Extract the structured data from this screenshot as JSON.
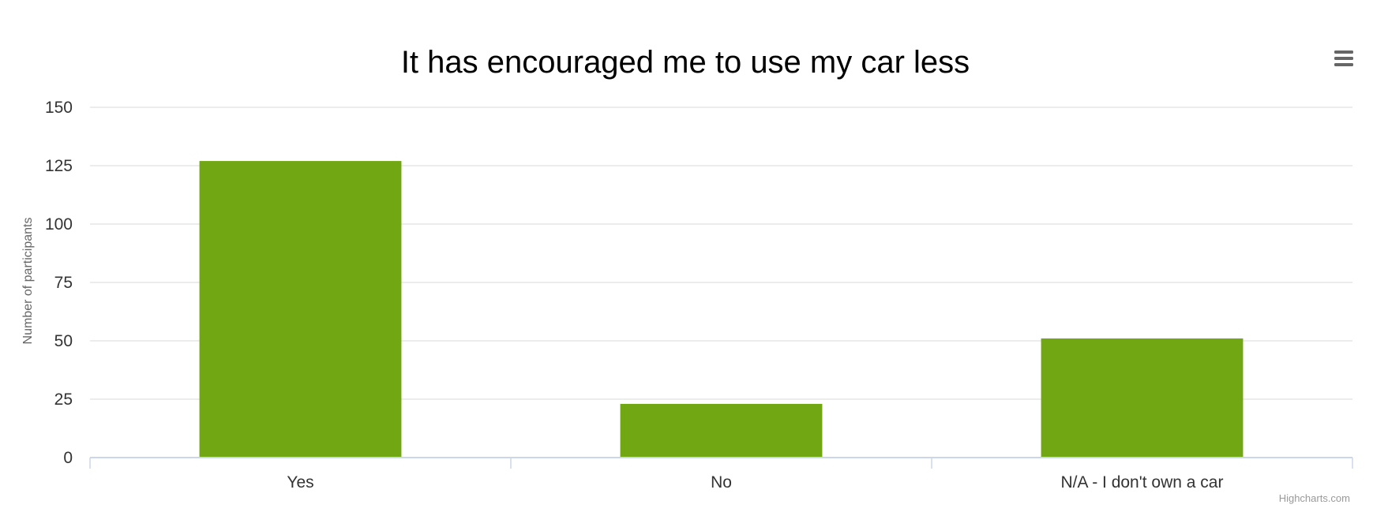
{
  "chart_data": {
    "type": "bar",
    "title": "It has encouraged me to use my car less",
    "ylabel": "Number of participants",
    "xlabel": "",
    "categories": [
      "Yes",
      "No",
      "N/A - I don't own a car"
    ],
    "values": [
      127,
      23,
      51
    ],
    "ylim": [
      0,
      150
    ],
    "yticks": [
      0,
      25,
      50,
      75,
      100,
      125,
      150
    ],
    "grid": true,
    "legend": "none",
    "bar_color": "#71a712",
    "credits": "Highcharts.com"
  },
  "toolbar": {
    "menu_icon": "hamburger-menu-icon"
  },
  "colors": {
    "gridline": "#e6e6e6",
    "axis_line": "#ccd6eb",
    "text": "#333333",
    "title": "#000000"
  }
}
